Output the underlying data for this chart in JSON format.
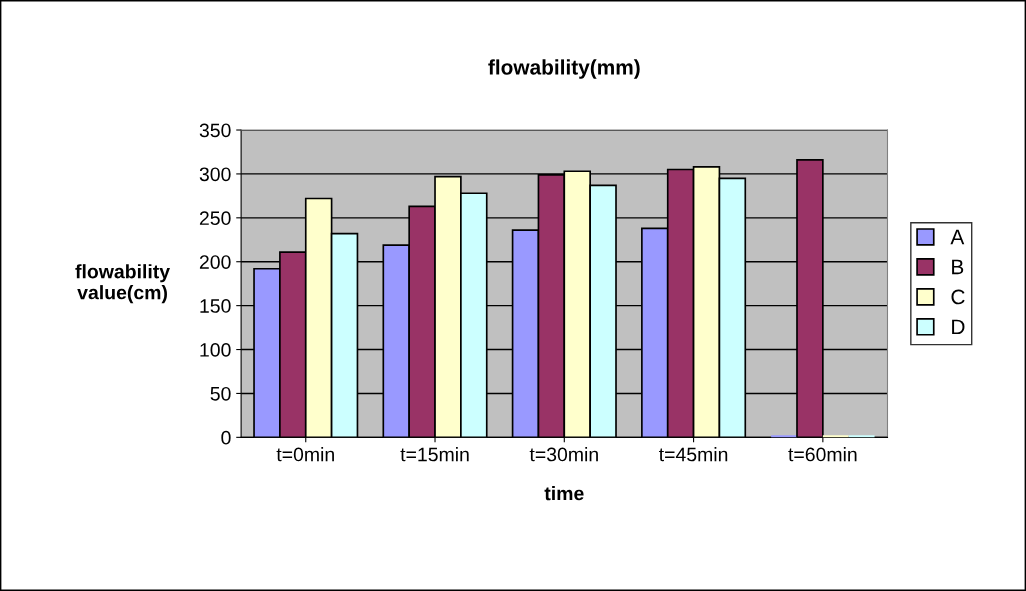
{
  "chart_data": {
    "type": "bar",
    "title": "flowability(mm)",
    "xlabel": "time",
    "ylabel": "flowability\nvalue(cm)",
    "categories": [
      "t=0min",
      "t=15min",
      "t=30min",
      "t=45min",
      "t=60min"
    ],
    "series": [
      {
        "name": "A",
        "color": "#9999ff",
        "values": [
          192,
          219,
          236,
          238,
          0
        ]
      },
      {
        "name": "B",
        "color": "#993366",
        "values": [
          211,
          263,
          299,
          305,
          316
        ]
      },
      {
        "name": "C",
        "color": "#ffffcc",
        "values": [
          272,
          297,
          303,
          308,
          0
        ]
      },
      {
        "name": "D",
        "color": "#ccffff",
        "values": [
          232,
          278,
          287,
          295,
          0
        ]
      }
    ],
    "ylim": [
      0,
      350
    ],
    "yticks": [
      0,
      50,
      100,
      150,
      200,
      250,
      300,
      350
    ],
    "grid": "y",
    "legend": "right"
  }
}
